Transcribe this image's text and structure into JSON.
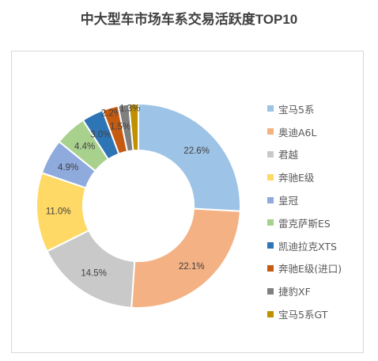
{
  "chart_data": {
    "type": "pie",
    "variant": "doughnut",
    "title": "中大型车市场车系交易活跃度TOP10",
    "legend_position": "right",
    "series": [
      {
        "name": "宝马5系",
        "value": 22.6,
        "label": "22.6%",
        "color": "#9dc3e6"
      },
      {
        "name": "奥迪A6L",
        "value": 22.1,
        "label": "22.1%",
        "color": "#f4b183"
      },
      {
        "name": "君越",
        "value": 14.5,
        "label": "14.5%",
        "color": "#c9c9c9"
      },
      {
        "name": "奔驰E级",
        "value": 11.0,
        "label": "11.0%",
        "color": "#ffd966"
      },
      {
        "name": "皇冠",
        "value": 4.9,
        "label": "4.9%",
        "color": "#8faadc"
      },
      {
        "name": "雷克萨斯ES",
        "value": 4.4,
        "label": "4.4%",
        "color": "#a9d18e"
      },
      {
        "name": "凯迪拉克XTS",
        "value": 3.0,
        "label": "3.0%",
        "color": "#2e75b6"
      },
      {
        "name": "奔驰E级(进口)",
        "value": 2.2,
        "label": "2.2%",
        "color": "#c55a11"
      },
      {
        "name": "捷豹XF",
        "value": 1.5,
        "label": "1.5%",
        "color": "#7f7f7f"
      },
      {
        "name": "宝马5系GT",
        "value": 1.3,
        "label": "1.3%",
        "color": "#bf9000"
      }
    ]
  }
}
